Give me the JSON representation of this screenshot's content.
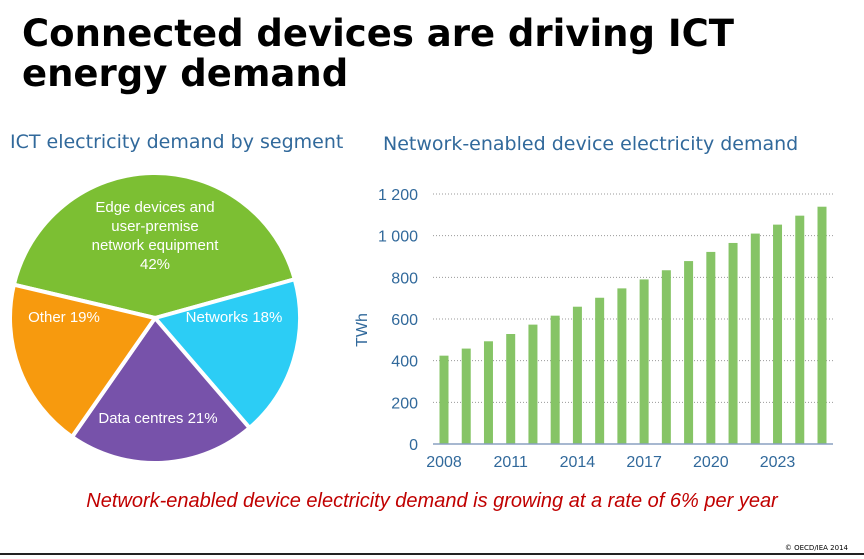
{
  "slide": {
    "title_line1": "Connected devices are driving ICT",
    "title_line2": "energy demand",
    "footer": "Network-enabled device electricity demand is growing at a rate of 6% per year",
    "copyright": "© OECD/IEA 2014"
  },
  "chart_data": [
    {
      "type": "pie",
      "title": "ICT electricity demand by segment",
      "slices": [
        {
          "label": "Edge devices and user-premise network equipment",
          "lines": [
            "Edge devices and",
            "user-premise",
            "network equipment",
            "42%"
          ],
          "value": 42,
          "color": "#7cbf33"
        },
        {
          "label": "Networks",
          "lines": [
            "Networks 18%"
          ],
          "value": 18,
          "color": "#2ccdf5"
        },
        {
          "label": "Data centres",
          "lines": [
            "Data centres 21%"
          ],
          "value": 21,
          "color": "#7752aa"
        },
        {
          "label": "Other",
          "lines": [
            "Other  19%"
          ],
          "value": 19,
          "color": "#f79a0e"
        }
      ]
    },
    {
      "type": "bar",
      "title": "Network-enabled device electricity demand",
      "ylabel": "TWh",
      "xlabel": "",
      "categories": [
        2008,
        2009,
        2010,
        2011,
        2012,
        2013,
        2014,
        2015,
        2016,
        2017,
        2018,
        2019,
        2020,
        2021,
        2022,
        2023,
        2024,
        2025
      ],
      "x_tick_labels": [
        "2008",
        "2011",
        "2014",
        "2017",
        "2020",
        "2023"
      ],
      "values": [
        424,
        458,
        493,
        528,
        573,
        616,
        659,
        702,
        747,
        790,
        834,
        878,
        922,
        965,
        1010,
        1053,
        1096,
        1139
      ],
      "ylim": [
        0,
        1200
      ],
      "y_ticks": [
        0,
        200,
        400,
        600,
        800,
        1000,
        1200
      ],
      "y_tick_labels": [
        "0",
        "200",
        "400",
        "600",
        "800",
        "1 000",
        "1 200"
      ],
      "grid": true,
      "color": "#86c466",
      "legend": "none"
    }
  ]
}
